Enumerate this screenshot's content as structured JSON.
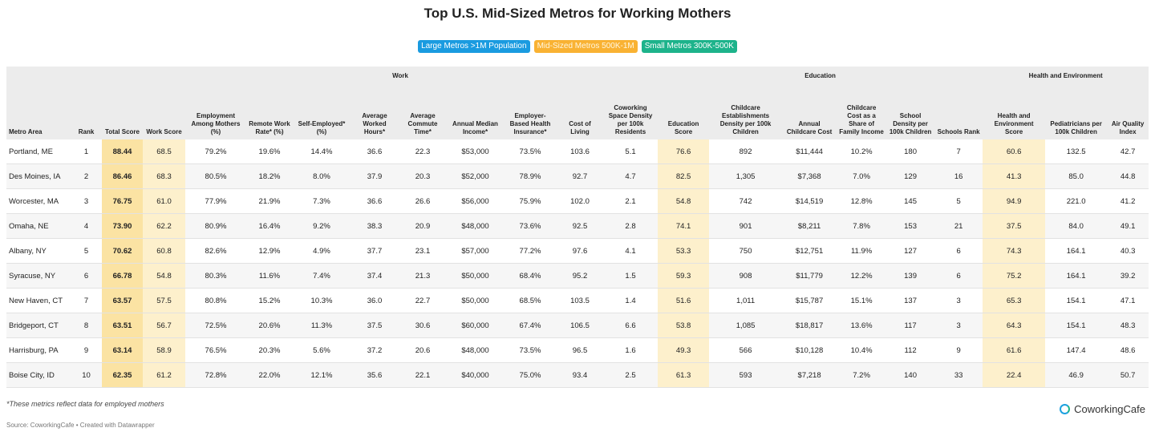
{
  "header": {
    "title": "Top U.S. Mid-Sized Metros for Working Mothers"
  },
  "legend": [
    "Large Metros >1M Population",
    "Mid-Sized Metros 500K-1M",
    "Small Metros 300K-500K"
  ],
  "table": {
    "groups": [
      "Work",
      "Education",
      "Health and Environment"
    ],
    "columns": [
      "Metro Area",
      "Rank",
      "Total Score",
      "Work Score",
      "Employment Among Mothers (%)",
      "Remote Work Rate* (%)",
      "Self-Employed* (%)",
      "Average Worked Hours*",
      "Average Commute Time*",
      "Annual Median Income*",
      "Employer-Based Health Insurance*",
      "Cost of Living",
      "Coworking Space Density per 100k Residents",
      "Education Score",
      "Childcare Establishments Density per 100k Children",
      "Annual Childcare Cost",
      "Childcare Cost as a Share of Family Income",
      "School Density per 100k Children",
      "Schools Rank",
      "Health and Environment Score",
      "Pediatricians per 100k Children",
      "Air Quality Index"
    ],
    "rows": [
      [
        "Portland, ME",
        "1",
        "88.44",
        "68.5",
        "79.2%",
        "19.6%",
        "14.4%",
        "36.6",
        "22.3",
        "$53,000",
        "73.5%",
        "103.6",
        "5.1",
        "76.6",
        "892",
        "$11,444",
        "10.2%",
        "180",
        "7",
        "60.6",
        "132.5",
        "42.7"
      ],
      [
        "Des Moines, IA",
        "2",
        "86.46",
        "68.3",
        "80.5%",
        "18.2%",
        "8.0%",
        "37.9",
        "20.3",
        "$52,000",
        "78.9%",
        "92.7",
        "4.7",
        "82.5",
        "1,305",
        "$7,368",
        "7.0%",
        "129",
        "16",
        "41.3",
        "85.0",
        "44.8"
      ],
      [
        "Worcester, MA",
        "3",
        "76.75",
        "61.0",
        "77.9%",
        "21.9%",
        "7.3%",
        "36.6",
        "26.6",
        "$56,000",
        "75.9%",
        "102.0",
        "2.1",
        "54.8",
        "742",
        "$14,519",
        "12.8%",
        "145",
        "5",
        "94.9",
        "221.0",
        "41.2"
      ],
      [
        "Omaha, NE",
        "4",
        "73.90",
        "62.2",
        "80.9%",
        "16.4%",
        "9.2%",
        "38.3",
        "20.9",
        "$48,000",
        "73.6%",
        "92.5",
        "2.8",
        "74.1",
        "901",
        "$8,211",
        "7.8%",
        "153",
        "21",
        "37.5",
        "84.0",
        "49.1"
      ],
      [
        "Albany, NY",
        "5",
        "70.62",
        "60.8",
        "82.6%",
        "12.9%",
        "4.9%",
        "37.7",
        "23.1",
        "$57,000",
        "77.2%",
        "97.6",
        "4.1",
        "53.3",
        "750",
        "$12,751",
        "11.9%",
        "127",
        "6",
        "74.3",
        "164.1",
        "40.3"
      ],
      [
        "Syracuse, NY",
        "6",
        "66.78",
        "54.8",
        "80.3%",
        "11.6%",
        "7.4%",
        "37.4",
        "21.3",
        "$50,000",
        "68.4%",
        "95.2",
        "1.5",
        "59.3",
        "908",
        "$11,779",
        "12.2%",
        "139",
        "6",
        "75.2",
        "164.1",
        "39.2"
      ],
      [
        "New Haven, CT",
        "7",
        "63.57",
        "57.5",
        "80.8%",
        "15.2%",
        "10.3%",
        "36.0",
        "22.7",
        "$50,000",
        "68.5%",
        "103.5",
        "1.4",
        "51.6",
        "1,011",
        "$15,787",
        "15.1%",
        "137",
        "3",
        "65.3",
        "154.1",
        "47.1"
      ],
      [
        "Bridgeport, CT",
        "8",
        "63.51",
        "56.7",
        "72.5%",
        "20.6%",
        "11.3%",
        "37.5",
        "30.6",
        "$60,000",
        "67.4%",
        "106.5",
        "6.6",
        "53.8",
        "1,085",
        "$18,817",
        "13.6%",
        "117",
        "3",
        "64.3",
        "154.1",
        "48.3"
      ],
      [
        "Harrisburg, PA",
        "9",
        "63.14",
        "58.9",
        "76.5%",
        "20.3%",
        "5.6%",
        "37.2",
        "20.6",
        "$48,000",
        "73.5%",
        "96.5",
        "1.6",
        "49.3",
        "566",
        "$10,128",
        "10.4%",
        "112",
        "9",
        "61.6",
        "147.4",
        "48.6"
      ],
      [
        "Boise City, ID",
        "10",
        "62.35",
        "61.2",
        "72.8%",
        "22.0%",
        "12.1%",
        "35.6",
        "22.1",
        "$40,000",
        "75.0%",
        "93.4",
        "2.5",
        "61.3",
        "593",
        "$7,218",
        "7.2%",
        "140",
        "33",
        "22.4",
        "46.9",
        "50.7"
      ]
    ]
  },
  "footer": {
    "note": "*These metrics reflect data for employed mothers",
    "source": "Source: CoworkingCafe • Created with Datawrapper",
    "logo": "CoworkingCafe"
  }
}
